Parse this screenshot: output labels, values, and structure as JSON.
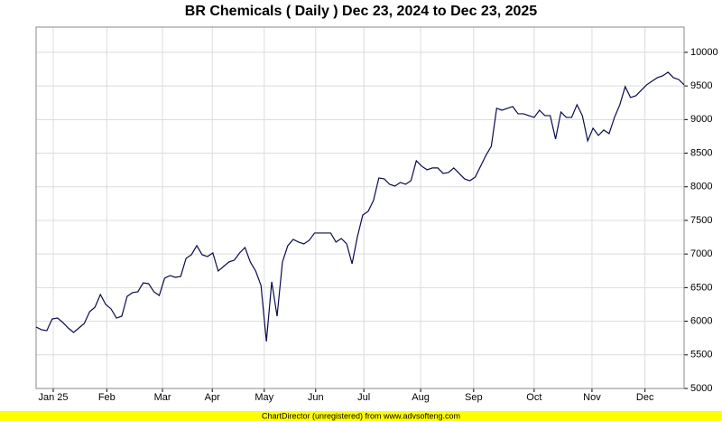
{
  "chart_data": {
    "type": "line",
    "title": "BR Chemicals ( Daily ) Dec 23, 2024 to Dec 23, 2025",
    "footer": "ChartDirector (unregistered) from www.advsofteng.com",
    "series": [
      {
        "name": "BR Chemicals",
        "color": "#0a0a50",
        "values": [
          5914,
          5874,
          5860,
          6035,
          6048,
          5981,
          5900,
          5833,
          5900,
          5968,
          6142,
          6210,
          6398,
          6250,
          6183,
          6048,
          6075,
          6371,
          6425,
          6438,
          6572,
          6559,
          6438,
          6384,
          6640,
          6680,
          6653,
          6667,
          6935,
          6989,
          7124,
          6989,
          6962,
          7016,
          6747,
          6814,
          6882,
          6908,
          7016,
          7097,
          6882,
          6747,
          6532,
          5699,
          6586,
          6075,
          6882,
          7124,
          7218,
          7178,
          7150,
          7204,
          7312,
          7312,
          7312,
          7312,
          7178,
          7231,
          7150,
          6855,
          7258,
          7580,
          7634,
          7796,
          8131,
          8118,
          8037,
          8010,
          8064,
          8037,
          8090,
          8387,
          8306,
          8253,
          8280,
          8280,
          8199,
          8212,
          8280,
          8199,
          8118,
          8090,
          8145,
          8306,
          8468,
          8602,
          9166,
          9139,
          9166,
          9193,
          9086,
          9086,
          9059,
          9032,
          9139,
          9059,
          9059,
          8710,
          9112,
          9032,
          9032,
          9220,
          9059,
          8683,
          8871,
          8764,
          8844,
          8791,
          9032,
          9220,
          9489,
          9328,
          9354,
          9435,
          9516,
          9570,
          9623,
          9650,
          9704,
          9623,
          9596,
          9516
        ]
      }
    ],
    "xlim": [
      0,
      121
    ],
    "xticks": [
      {
        "value": 3.2,
        "label": "Jan 25"
      },
      {
        "value": 13.2,
        "label": "Feb"
      },
      {
        "value": 23.6,
        "label": "Mar"
      },
      {
        "value": 32.9,
        "label": "Apr"
      },
      {
        "value": 42.6,
        "label": "May"
      },
      {
        "value": 52.2,
        "label": "Jun"
      },
      {
        "value": 61.2,
        "label": "Jul"
      },
      {
        "value": 71.8,
        "label": "Aug"
      },
      {
        "value": 81.7,
        "label": "Sep"
      },
      {
        "value": 93.0,
        "label": "Oct"
      },
      {
        "value": 103.8,
        "label": "Nov"
      },
      {
        "value": 113.7,
        "label": "Dec"
      }
    ],
    "ylim": [
      5000,
      10375
    ],
    "yticks": [
      5000,
      5500,
      6000,
      6500,
      7000,
      7500,
      8000,
      8500,
      9000,
      9500,
      10000
    ],
    "grid": true
  }
}
